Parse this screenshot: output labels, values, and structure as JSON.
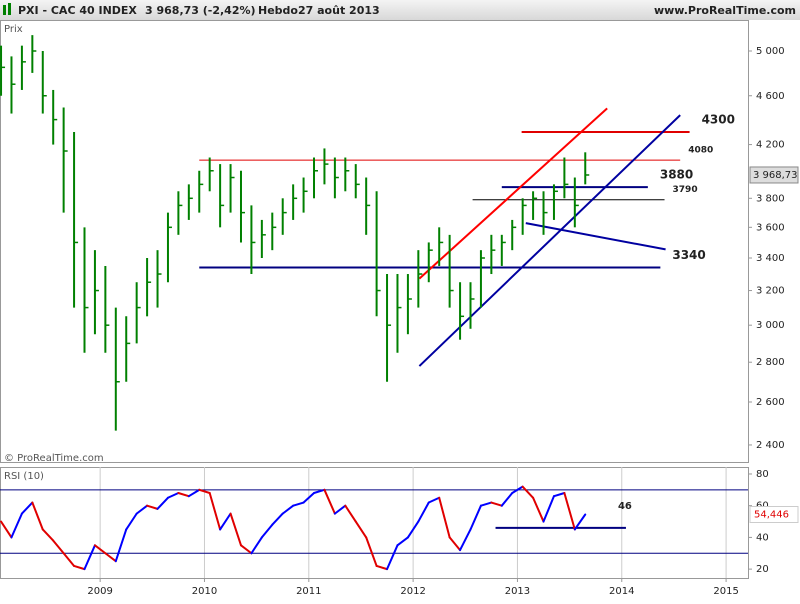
{
  "header": {
    "symbol": "PXI - CAC 40 INDEX",
    "quote": "3 968,73 (-2,42%)",
    "period": "Hebdo",
    "date": "27 août 2013",
    "site": "www.ProRealTime.com"
  },
  "chart_data": {
    "type": "ohlc",
    "axis_label": "Prix",
    "copyright": "© ProRealTime.com",
    "log_y": true,
    "color": "#008000",
    "x": [
      2008.05,
      2008.15,
      2008.25,
      2008.35,
      2008.45,
      2008.55,
      2008.65,
      2008.75,
      2008.85,
      2008.95,
      2009.05,
      2009.15,
      2009.25,
      2009.35,
      2009.45,
      2009.55,
      2009.65,
      2009.75,
      2009.85,
      2009.95,
      2010.05,
      2010.15,
      2010.25,
      2010.35,
      2010.45,
      2010.55,
      2010.65,
      2010.75,
      2010.85,
      2010.95,
      2011.05,
      2011.15,
      2011.25,
      2011.35,
      2011.45,
      2011.55,
      2011.65,
      2011.75,
      2011.85,
      2011.95,
      2012.05,
      2012.15,
      2012.25,
      2012.35,
      2012.45,
      2012.55,
      2012.65,
      2012.75,
      2012.85,
      2012.95,
      2013.05,
      2013.15,
      2013.25,
      2013.35,
      2013.45,
      2013.55,
      2013.65
    ],
    "high": [
      5050,
      4950,
      5050,
      5150,
      5000,
      4650,
      4500,
      4300,
      3600,
      3450,
      3350,
      3100,
      3050,
      3250,
      3400,
      3450,
      3700,
      3850,
      3900,
      4000,
      4100,
      4050,
      4050,
      4000,
      3750,
      3650,
      3700,
      3800,
      3900,
      3950,
      4100,
      4170,
      4100,
      4100,
      4050,
      3950,
      3850,
      3300,
      3300,
      3300,
      3450,
      3500,
      3600,
      3550,
      3250,
      3250,
      3450,
      3550,
      3550,
      3650,
      3800,
      3850,
      3850,
      3900,
      4100,
      3950,
      4140
    ],
    "low": [
      4600,
      4450,
      4650,
      4800,
      4450,
      4200,
      3700,
      3100,
      2850,
      2950,
      2850,
      2465,
      2700,
      2900,
      3050,
      3100,
      3250,
      3550,
      3650,
      3700,
      3850,
      3600,
      3700,
      3500,
      3300,
      3400,
      3450,
      3550,
      3650,
      3700,
      3800,
      3900,
      3800,
      3850,
      3800,
      3550,
      3050,
      2700,
      2850,
      2950,
      3100,
      3250,
      3350,
      3100,
      2920,
      2980,
      3100,
      3300,
      3350,
      3450,
      3550,
      3650,
      3550,
      3650,
      3800,
      3600,
      3900
    ],
    "close": [
      4850,
      4700,
      4900,
      5000,
      4600,
      4400,
      4150,
      3500,
      3100,
      3200,
      3000,
      2700,
      2900,
      3100,
      3250,
      3300,
      3600,
      3750,
      3800,
      3900,
      4000,
      3750,
      3950,
      3700,
      3500,
      3550,
      3600,
      3700,
      3800,
      3850,
      4000,
      4050,
      3950,
      4000,
      3900,
      3750,
      3200,
      3000,
      3100,
      3150,
      3300,
      3450,
      3500,
      3200,
      3050,
      3150,
      3400,
      3450,
      3500,
      3600,
      3750,
      3800,
      3700,
      3850,
      3900,
      3750,
      3968.73
    ],
    "last_label": "3 968,73",
    "xlim": [
      2008.04,
      2015.21
    ],
    "xticks": [
      2009,
      2010,
      2011,
      2012,
      2013,
      2014,
      2015
    ],
    "ylim": [
      2325,
      5317
    ],
    "yticks": [
      {
        "value": 2400,
        "label": "2 400"
      },
      {
        "value": 2600,
        "label": "2 600"
      },
      {
        "value": 2800,
        "label": "2 800"
      },
      {
        "value": 3000,
        "label": "3 000"
      },
      {
        "value": 3200,
        "label": "3 200"
      },
      {
        "value": 3400,
        "label": "3 400"
      },
      {
        "value": 3600,
        "label": "3 600"
      },
      {
        "value": 3800,
        "label": "3 800"
      },
      {
        "value": 4200,
        "label": "4 200"
      },
      {
        "value": 4600,
        "label": "4 600"
      },
      {
        "value": 5000,
        "label": "5 000"
      }
    ],
    "levels": [
      {
        "value": 4300,
        "x": [
          2013.04,
          2014.65
        ],
        "color": "#e00000",
        "bold": true
      },
      {
        "value": 4080,
        "x": [
          2009.95,
          2014.56
        ],
        "color": "#e00000",
        "bold": false
      },
      {
        "value": 3880,
        "x": [
          2012.85,
          2014.25
        ],
        "color": "#000080",
        "bold": true
      },
      {
        "value": 3790,
        "x": [
          2012.57,
          2014.41
        ],
        "color": "#000000",
        "bold": false
      },
      {
        "value": 3340,
        "x": [
          2009.95,
          2014.37
        ],
        "color": "#000080",
        "bold": true
      }
    ],
    "trendlines": [
      {
        "color": "#ff0000",
        "x": [
          2012.06,
          2013.86
        ],
        "y": [
          3272,
          4493
        ]
      },
      {
        "color": "#0000a0",
        "x": [
          2012.06,
          2014.56
        ],
        "y": [
          2780,
          4437
        ]
      },
      {
        "color": "#0000a0",
        "x": [
          2013.08,
          2014.42
        ],
        "y": [
          3628,
          3455
        ]
      }
    ],
    "rsi": {
      "title": "RSI (10)",
      "rise_color": "#0000ff",
      "fall_color": "#e00000",
      "values": [
        50,
        40,
        55,
        62,
        45,
        38,
        30,
        22,
        20,
        35,
        30,
        25,
        45,
        55,
        60,
        58,
        65,
        68,
        66,
        70,
        68,
        45,
        55,
        35,
        30,
        40,
        48,
        55,
        60,
        62,
        68,
        70,
        55,
        60,
        50,
        40,
        22,
        20,
        35,
        40,
        50,
        62,
        65,
        40,
        32,
        45,
        60,
        62,
        60,
        68,
        72,
        65,
        50,
        66,
        68,
        45,
        54.446
      ],
      "last_label": "54,446",
      "ylim": [
        14.4,
        84.4
      ],
      "yticks": [
        20,
        40,
        60,
        80
      ],
      "bands": [
        30,
        70
      ],
      "level": {
        "value": 46,
        "x": [
          2012.79,
          2014.04
        ],
        "color": "#000080"
      }
    }
  }
}
